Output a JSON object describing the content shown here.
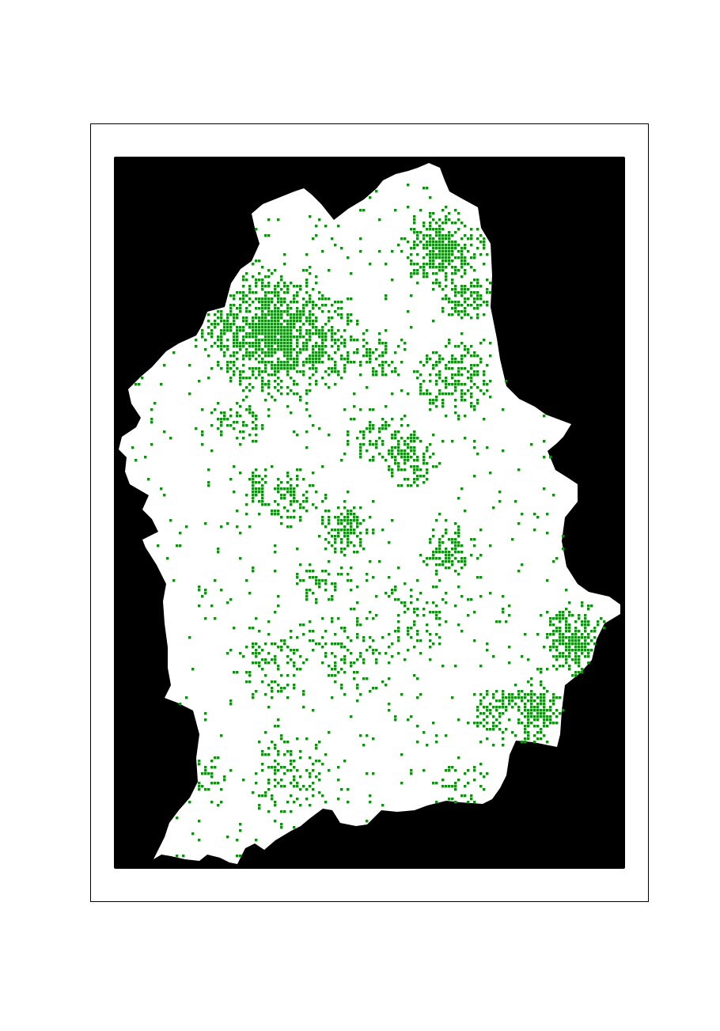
{
  "map": {
    "colors": {
      "frame": "#000000",
      "background": "#000000",
      "land": "#ffffff",
      "cover": "#1a8a1a"
    },
    "legend": null,
    "title": ""
  }
}
